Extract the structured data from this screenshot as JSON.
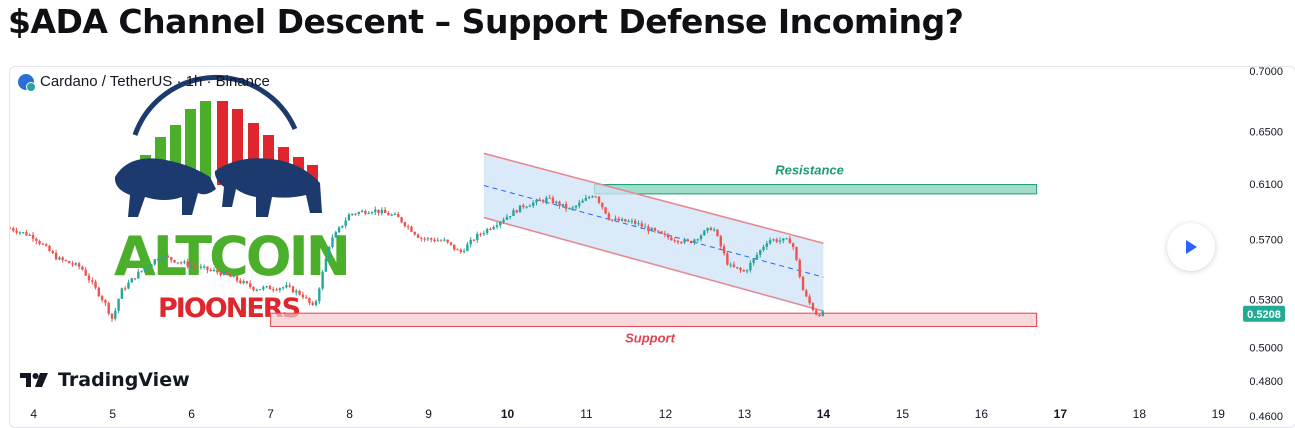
{
  "headline": "$ADA Channel Descent – Support Defense Incoming?",
  "symbol": {
    "label": "Cardano / TetherUS · 1h · Binance",
    "icon": "cardano-coin-icon"
  },
  "watermark": {
    "line1": "ALTCOIN",
    "line2": "PIOONERS",
    "icon": "bull-bear-logo-icon"
  },
  "branding": {
    "name": "TradingView",
    "icon": "tradingview-logo-icon"
  },
  "play_button": {
    "icon": "play-icon"
  },
  "colors": {
    "up": "#26a69a",
    "down": "#ef5350",
    "resistance_fill": "#8fd8c2",
    "resistance_border": "#1c9b77",
    "support_fill": "#f5c7cb",
    "support_border": "#e04452",
    "channel_fill": "#cfe3f7",
    "channel_border": "#e58a92",
    "midline": "#2962ff",
    "price_tag": "#22ab94",
    "watermark_green": "#4caf2c",
    "watermark_red": "#e0262d",
    "watermark_navy": "#1c3a6d"
  },
  "chart_data": {
    "type": "candlestick",
    "timeframe": "1h",
    "x_ticks": [
      "4",
      "5",
      "6",
      "7",
      "8",
      "9",
      "10",
      "11",
      "12",
      "13",
      "14",
      "15",
      "16",
      "17",
      "18",
      "19"
    ],
    "y_ticks": [
      "0.7000",
      "0.6500",
      "0.6100",
      "0.5700",
      "0.5300",
      "0.5000",
      "0.4800",
      "0.4600"
    ],
    "y_scale": "log",
    "ylim": [
      0.4538,
      0.7032
    ],
    "x_range_days": [
      3.7,
      19.3
    ],
    "close_series": [
      {
        "day": 3.7,
        "price": 0.578
      },
      {
        "day": 4.0,
        "price": 0.572
      },
      {
        "day": 4.3,
        "price": 0.557
      },
      {
        "day": 4.6,
        "price": 0.551
      },
      {
        "day": 4.9,
        "price": 0.528
      },
      {
        "day": 5.0,
        "price": 0.517
      },
      {
        "day": 5.1,
        "price": 0.535
      },
      {
        "day": 5.3,
        "price": 0.546
      },
      {
        "day": 5.6,
        "price": 0.559
      },
      {
        "day": 6.0,
        "price": 0.552
      },
      {
        "day": 6.4,
        "price": 0.547
      },
      {
        "day": 6.8,
        "price": 0.537
      },
      {
        "day": 7.2,
        "price": 0.538
      },
      {
        "day": 7.4,
        "price": 0.533
      },
      {
        "day": 7.55,
        "price": 0.524
      },
      {
        "day": 7.75,
        "price": 0.568
      },
      {
        "day": 8.0,
        "price": 0.588
      },
      {
        "day": 8.3,
        "price": 0.591
      },
      {
        "day": 8.6,
        "price": 0.586
      },
      {
        "day": 8.9,
        "price": 0.571
      },
      {
        "day": 9.2,
        "price": 0.569
      },
      {
        "day": 9.4,
        "price": 0.561
      },
      {
        "day": 9.6,
        "price": 0.572
      },
      {
        "day": 9.9,
        "price": 0.583
      },
      {
        "day": 10.2,
        "price": 0.594
      },
      {
        "day": 10.5,
        "price": 0.599
      },
      {
        "day": 10.8,
        "price": 0.591
      },
      {
        "day": 11.1,
        "price": 0.603
      },
      {
        "day": 11.3,
        "price": 0.584
      },
      {
        "day": 11.6,
        "price": 0.582
      },
      {
        "day": 12.0,
        "price": 0.572
      },
      {
        "day": 12.3,
        "price": 0.568
      },
      {
        "day": 12.6,
        "price": 0.579
      },
      {
        "day": 12.8,
        "price": 0.552
      },
      {
        "day": 13.0,
        "price": 0.548
      },
      {
        "day": 13.3,
        "price": 0.57
      },
      {
        "day": 13.6,
        "price": 0.569
      },
      {
        "day": 13.75,
        "price": 0.534
      },
      {
        "day": 13.9,
        "price": 0.521
      },
      {
        "day": 14.0,
        "price": 0.5208
      }
    ],
    "last_price": "0.5208",
    "annotations": [
      {
        "type": "zone",
        "label": "Resistance",
        "day_start": 11.1,
        "day_end": 16.7,
        "price_low": 0.6026,
        "price_high": 0.6095
      },
      {
        "type": "zone",
        "label": "Support",
        "day_start": 7.0,
        "day_end": 16.7,
        "price_low": 0.5128,
        "price_high": 0.5212
      },
      {
        "type": "descending_channel",
        "day_start": 9.7,
        "day_end": 14.0,
        "upper_start": 0.633,
        "upper_end": 0.5675,
        "lower_start": 0.5855,
        "lower_end": 0.5225
      }
    ],
    "grid": false,
    "legend": "none"
  }
}
